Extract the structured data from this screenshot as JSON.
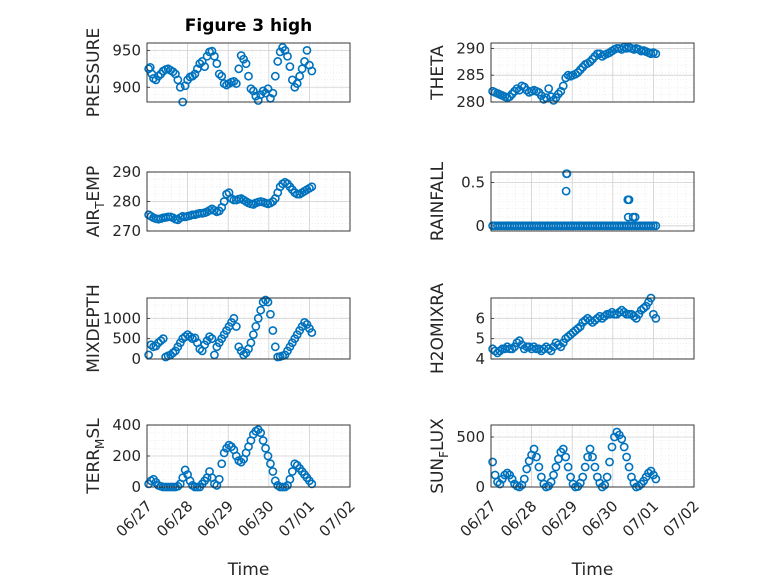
{
  "figure": {
    "title": "Figure 3 high",
    "marker_color": "#0072BD",
    "x_tick_labels": [
      "06/27",
      "06/28",
      "06/29",
      "06/30",
      "07/01",
      "07/02"
    ],
    "x_label": "Time"
  },
  "chart_data": [
    {
      "type": "scatter",
      "title": "Figure 3 high",
      "ylabel": "PRESSURE",
      "ylim": [
        880,
        960
      ],
      "yticks": [
        900,
        950
      ],
      "grid": true,
      "xlim": [
        0,
        5
      ],
      "x": [
        0.04,
        0.08,
        0.12,
        0.16,
        0.22,
        0.28,
        0.34,
        0.4,
        0.46,
        0.52,
        0.58,
        0.64,
        0.7,
        0.76,
        0.82,
        0.88,
        0.94,
        1.0,
        1.06,
        1.12,
        1.18,
        1.24,
        1.3,
        1.36,
        1.42,
        1.48,
        1.54,
        1.6,
        1.66,
        1.72,
        1.78,
        1.84,
        1.9,
        1.96,
        2.02,
        2.08,
        2.14,
        2.2,
        2.26,
        2.32,
        2.38,
        2.44,
        2.5,
        2.56,
        2.62,
        2.68,
        2.74,
        2.8,
        2.86,
        2.92,
        2.98,
        3.04,
        3.1,
        3.16,
        3.22,
        3.28,
        3.34,
        3.4,
        3.46,
        3.52,
        3.58,
        3.64,
        3.7,
        3.76,
        3.82,
        3.88,
        3.94,
        4.0,
        4.06
      ],
      "y": [
        925,
        927,
        918,
        912,
        910,
        915,
        918,
        922,
        924,
        925,
        923,
        921,
        918,
        910,
        900,
        880,
        902,
        910,
        914,
        915,
        918,
        925,
        932,
        935,
        928,
        942,
        948,
        949,
        942,
        932,
        918,
        915,
        905,
        903,
        905,
        907,
        908,
        905,
        925,
        943,
        938,
        932,
        915,
        898,
        895,
        888,
        882,
        890,
        895,
        892,
        898,
        885,
        892,
        915,
        935,
        948,
        954,
        950,
        942,
        928,
        910,
        900,
        905,
        915,
        925,
        935,
        950,
        930,
        922
      ]
    },
    {
      "type": "scatter",
      "ylabel": "THETA",
      "ylim": [
        280,
        291
      ],
      "yticks": [
        280,
        285,
        290
      ],
      "grid": true,
      "xlim": [
        0,
        5
      ],
      "x": [
        0.04,
        0.1,
        0.16,
        0.22,
        0.28,
        0.34,
        0.4,
        0.46,
        0.52,
        0.58,
        0.64,
        0.7,
        0.76,
        0.82,
        0.88,
        0.94,
        1.0,
        1.06,
        1.12,
        1.18,
        1.24,
        1.3,
        1.36,
        1.42,
        1.48,
        1.54,
        1.6,
        1.66,
        1.72,
        1.78,
        1.84,
        1.9,
        1.96,
        2.02,
        2.08,
        2.14,
        2.2,
        2.26,
        2.32,
        2.38,
        2.44,
        2.5,
        2.56,
        2.62,
        2.68,
        2.74,
        2.8,
        2.86,
        2.92,
        2.98,
        3.04,
        3.1,
        3.16,
        3.22,
        3.28,
        3.34,
        3.4,
        3.46,
        3.52,
        3.58,
        3.64,
        3.7,
        3.76,
        3.82,
        3.88,
        3.94,
        4.0,
        4.06
      ],
      "y": [
        282.0,
        281.8,
        281.6,
        281.4,
        281.2,
        281.0,
        280.8,
        281.0,
        281.5,
        282.0,
        282.5,
        282.2,
        283.0,
        282.8,
        282.2,
        281.8,
        282.0,
        282.2,
        282.0,
        281.8,
        281.2,
        280.5,
        280.8,
        282.5,
        281.0,
        280.3,
        280.8,
        281.5,
        282.0,
        283.0,
        284.5,
        285.0,
        284.8,
        285.0,
        285.2,
        285.5,
        286.0,
        286.5,
        287.0,
        287.2,
        287.5,
        288.0,
        288.5,
        289.0,
        289.0,
        288.5,
        288.8,
        289.0,
        289.2,
        289.5,
        289.8,
        290.0,
        290.0,
        289.8,
        290.2,
        290.0,
        290.2,
        290.0,
        289.8,
        290.0,
        289.8,
        289.5,
        289.6,
        289.4,
        289.2,
        289.0,
        289.2,
        289.0
      ]
    },
    {
      "type": "scatter",
      "ylabel": "AIR_TEMP",
      "ylim": [
        270,
        290
      ],
      "yticks": [
        270,
        280,
        290
      ],
      "grid": true,
      "xlim": [
        0,
        5
      ],
      "x": [
        0.04,
        0.1,
        0.16,
        0.22,
        0.28,
        0.34,
        0.4,
        0.46,
        0.52,
        0.58,
        0.64,
        0.7,
        0.76,
        0.82,
        0.88,
        0.94,
        1.0,
        1.06,
        1.12,
        1.18,
        1.24,
        1.3,
        1.36,
        1.42,
        1.48,
        1.54,
        1.6,
        1.66,
        1.72,
        1.78,
        1.84,
        1.9,
        1.96,
        2.02,
        2.08,
        2.14,
        2.2,
        2.26,
        2.32,
        2.38,
        2.44,
        2.5,
        2.56,
        2.62,
        2.68,
        2.74,
        2.8,
        2.86,
        2.92,
        2.98,
        3.04,
        3.1,
        3.16,
        3.22,
        3.28,
        3.34,
        3.4,
        3.46,
        3.52,
        3.58,
        3.64,
        3.7,
        3.76,
        3.82,
        3.88,
        3.94,
        4.0,
        4.06
      ],
      "y": [
        275.5,
        275.0,
        274.5,
        274.2,
        274.0,
        274.2,
        274.5,
        274.6,
        274.8,
        274.8,
        274.5,
        274.0,
        273.8,
        274.5,
        275.0,
        274.8,
        275.0,
        275.2,
        275.5,
        275.5,
        275.8,
        276.0,
        276.0,
        276.2,
        276.5,
        277.0,
        277.5,
        277.0,
        276.5,
        276.8,
        278.0,
        280.0,
        282.5,
        283.0,
        281.0,
        280.5,
        280.5,
        280.8,
        281.0,
        280.5,
        280.0,
        279.5,
        279.2,
        279.0,
        279.5,
        279.8,
        280.0,
        279.8,
        279.5,
        279.2,
        279.5,
        280.0,
        281.0,
        283.0,
        285.0,
        286.0,
        286.5,
        286.0,
        285.0,
        284.0,
        283.0,
        282.5,
        282.5,
        283.0,
        283.5,
        284.0,
        284.5,
        285.0
      ]
    },
    {
      "type": "scatter",
      "ylabel": "RAINFALL",
      "ylim": [
        -0.06,
        0.62
      ],
      "yticks": [
        0,
        0.5
      ],
      "grid": true,
      "xlim": [
        0,
        5
      ],
      "x": [
        0.04,
        0.1,
        0.16,
        0.22,
        0.28,
        0.34,
        0.4,
        0.46,
        0.52,
        0.58,
        0.64,
        0.7,
        0.76,
        0.82,
        0.88,
        0.94,
        1.0,
        1.06,
        1.12,
        1.18,
        1.24,
        1.3,
        1.36,
        1.42,
        1.48,
        1.54,
        1.6,
        1.66,
        1.72,
        1.78,
        1.84,
        1.9,
        1.96,
        2.02,
        2.08,
        2.14,
        2.2,
        2.26,
        2.32,
        2.38,
        2.44,
        2.5,
        2.56,
        2.62,
        2.68,
        2.74,
        2.8,
        2.86,
        2.92,
        2.98,
        3.04,
        3.1,
        3.16,
        3.22,
        3.28,
        3.34,
        3.4,
        3.46,
        3.52,
        3.58,
        3.64,
        3.7,
        3.76,
        3.82,
        3.88,
        3.94,
        4.0,
        4.06,
        1.86,
        1.87,
        1.85,
        3.37,
        3.4,
        3.38,
        3.5,
        3.55
      ],
      "y": [
        0,
        0,
        0,
        0,
        0,
        0,
        0,
        0,
        0,
        0,
        0,
        0,
        0,
        0,
        0,
        0,
        0,
        0,
        0,
        0,
        0,
        0,
        0,
        0,
        0,
        0,
        0,
        0,
        0,
        0,
        0,
        0,
        0,
        0,
        0,
        0,
        0,
        0,
        0,
        0,
        0,
        0,
        0,
        0,
        0,
        0,
        0,
        0,
        0,
        0,
        0,
        0,
        0,
        0,
        0,
        0,
        0,
        0,
        0,
        0,
        0,
        0,
        0,
        0,
        0,
        0,
        0,
        0,
        0.6,
        0.6,
        0.4,
        0.3,
        0.3,
        0.1,
        0.1,
        0.1
      ]
    },
    {
      "type": "scatter",
      "ylabel": "MIXDEPTH",
      "ylim": [
        0,
        1500
      ],
      "yticks": [
        0,
        500,
        1000
      ],
      "grid": true,
      "xlim": [
        0,
        5
      ],
      "x": [
        0.04,
        0.1,
        0.16,
        0.22,
        0.28,
        0.34,
        0.4,
        0.46,
        0.52,
        0.58,
        0.64,
        0.7,
        0.76,
        0.82,
        0.88,
        0.94,
        1.0,
        1.06,
        1.12,
        1.18,
        1.24,
        1.3,
        1.36,
        1.42,
        1.48,
        1.54,
        1.6,
        1.66,
        1.72,
        1.78,
        1.84,
        1.9,
        1.96,
        2.02,
        2.08,
        2.14,
        2.2,
        2.26,
        2.32,
        2.38,
        2.44,
        2.5,
        2.56,
        2.62,
        2.68,
        2.74,
        2.8,
        2.86,
        2.92,
        2.98,
        3.04,
        3.1,
        3.16,
        3.22,
        3.28,
        3.34,
        3.4,
        3.46,
        3.52,
        3.58,
        3.64,
        3.7,
        3.76,
        3.82,
        3.88,
        3.94,
        4.0,
        4.06
      ],
      "y": [
        100,
        350,
        300,
        320,
        400,
        450,
        500,
        50,
        80,
        100,
        150,
        200,
        300,
        400,
        500,
        550,
        600,
        550,
        500,
        520,
        400,
        250,
        200,
        350,
        450,
        550,
        500,
        100,
        300,
        400,
        500,
        600,
        700,
        800,
        900,
        1000,
        800,
        300,
        200,
        100,
        150,
        250,
        400,
        600,
        800,
        1000,
        1200,
        1400,
        1450,
        1400,
        1100,
        700,
        300,
        50,
        60,
        80,
        100,
        200,
        300,
        400,
        500,
        600,
        700,
        800,
        900,
        850,
        750,
        650
      ]
    },
    {
      "type": "scatter",
      "ylabel": "H2OMIXRA",
      "ylim": [
        4,
        7
      ],
      "yticks": [
        4,
        5,
        6
      ],
      "grid": true,
      "xlim": [
        0,
        5
      ],
      "x": [
        0.04,
        0.1,
        0.16,
        0.22,
        0.28,
        0.34,
        0.4,
        0.46,
        0.52,
        0.58,
        0.64,
        0.7,
        0.76,
        0.82,
        0.88,
        0.94,
        1.0,
        1.06,
        1.12,
        1.18,
        1.24,
        1.3,
        1.36,
        1.42,
        1.48,
        1.54,
        1.6,
        1.66,
        1.72,
        1.78,
        1.84,
        1.9,
        1.96,
        2.02,
        2.08,
        2.14,
        2.2,
        2.26,
        2.32,
        2.38,
        2.44,
        2.5,
        2.56,
        2.62,
        2.68,
        2.74,
        2.8,
        2.86,
        2.92,
        2.98,
        3.04,
        3.1,
        3.16,
        3.22,
        3.28,
        3.34,
        3.4,
        3.46,
        3.52,
        3.58,
        3.64,
        3.7,
        3.76,
        3.82,
        3.88,
        3.94,
        4.0,
        4.06
      ],
      "y": [
        4.5,
        4.4,
        4.3,
        4.4,
        4.5,
        4.5,
        4.6,
        4.5,
        4.5,
        4.6,
        4.8,
        4.9,
        4.7,
        4.5,
        4.6,
        4.6,
        4.5,
        4.6,
        4.5,
        4.5,
        4.4,
        4.5,
        4.6,
        4.5,
        4.4,
        4.6,
        4.8,
        4.7,
        4.6,
        4.8,
        5.0,
        5.1,
        5.2,
        5.3,
        5.4,
        5.5,
        5.6,
        5.8,
        5.9,
        6.0,
        5.9,
        5.8,
        5.9,
        6.0,
        6.1,
        6.0,
        6.1,
        6.2,
        6.2,
        6.3,
        6.2,
        6.2,
        6.3,
        6.4,
        6.3,
        6.2,
        6.2,
        6.2,
        6.1,
        6.0,
        6.2,
        6.4,
        6.5,
        6.6,
        6.8,
        7.0,
        6.2,
        6.0
      ]
    },
    {
      "type": "scatter",
      "ylabel": "TERR_MSL",
      "ylim": [
        0,
        400
      ],
      "yticks": [
        0,
        200,
        400
      ],
      "grid": true,
      "xlim": [
        0,
        5
      ],
      "x": [
        0.04,
        0.1,
        0.16,
        0.22,
        0.28,
        0.34,
        0.4,
        0.46,
        0.52,
        0.58,
        0.64,
        0.7,
        0.76,
        0.82,
        0.88,
        0.94,
        1.0,
        1.06,
        1.12,
        1.18,
        1.24,
        1.3,
        1.36,
        1.42,
        1.48,
        1.54,
        1.6,
        1.66,
        1.72,
        1.78,
        1.84,
        1.9,
        1.96,
        2.02,
        2.08,
        2.14,
        2.2,
        2.26,
        2.32,
        2.38,
        2.44,
        2.5,
        2.56,
        2.62,
        2.68,
        2.74,
        2.8,
        2.86,
        2.92,
        2.98,
        3.04,
        3.1,
        3.16,
        3.22,
        3.28,
        3.34,
        3.4,
        3.46,
        3.52,
        3.58,
        3.64,
        3.7,
        3.76,
        3.82,
        3.88,
        3.94,
        4.0,
        4.06
      ],
      "y": [
        20,
        40,
        50,
        30,
        10,
        5,
        0,
        0,
        0,
        0,
        0,
        0,
        5,
        20,
        60,
        110,
        80,
        40,
        10,
        0,
        0,
        0,
        20,
        40,
        60,
        100,
        60,
        20,
        10,
        50,
        150,
        220,
        250,
        270,
        260,
        240,
        200,
        170,
        160,
        180,
        220,
        260,
        300,
        340,
        360,
        370,
        350,
        300,
        250,
        200,
        150,
        100,
        40,
        10,
        0,
        0,
        0,
        10,
        50,
        100,
        150,
        140,
        120,
        100,
        80,
        60,
        40,
        20
      ]
    },
    {
      "type": "scatter",
      "ylabel": "SUN_FLUX",
      "ylim": [
        0,
        620
      ],
      "yticks": [
        0,
        500
      ],
      "grid": true,
      "xlim": [
        0,
        5
      ],
      "x": [
        0.04,
        0.1,
        0.16,
        0.22,
        0.28,
        0.34,
        0.4,
        0.46,
        0.52,
        0.58,
        0.64,
        0.7,
        0.76,
        0.82,
        0.88,
        0.94,
        1.0,
        1.06,
        1.12,
        1.18,
        1.24,
        1.3,
        1.36,
        1.42,
        1.48,
        1.54,
        1.6,
        1.66,
        1.72,
        1.78,
        1.84,
        1.9,
        1.96,
        2.02,
        2.08,
        2.14,
        2.2,
        2.26,
        2.32,
        2.38,
        2.44,
        2.5,
        2.56,
        2.62,
        2.68,
        2.74,
        2.8,
        2.86,
        2.92,
        2.98,
        3.04,
        3.1,
        3.16,
        3.22,
        3.28,
        3.34,
        3.4,
        3.46,
        3.52,
        3.58,
        3.64,
        3.7,
        3.76,
        3.82,
        3.88,
        3.94,
        4.0,
        4.06
      ],
      "y": [
        250,
        120,
        50,
        30,
        80,
        120,
        140,
        120,
        80,
        30,
        10,
        0,
        20,
        80,
        180,
        260,
        320,
        380,
        300,
        200,
        100,
        30,
        0,
        10,
        50,
        120,
        200,
        280,
        350,
        380,
        300,
        200,
        100,
        30,
        0,
        5,
        40,
        100,
        200,
        300,
        380,
        300,
        200,
        100,
        40,
        0,
        20,
        100,
        250,
        400,
        500,
        550,
        520,
        480,
        400,
        300,
        200,
        100,
        40,
        0,
        10,
        30,
        60,
        100,
        140,
        160,
        120,
        80
      ]
    }
  ]
}
